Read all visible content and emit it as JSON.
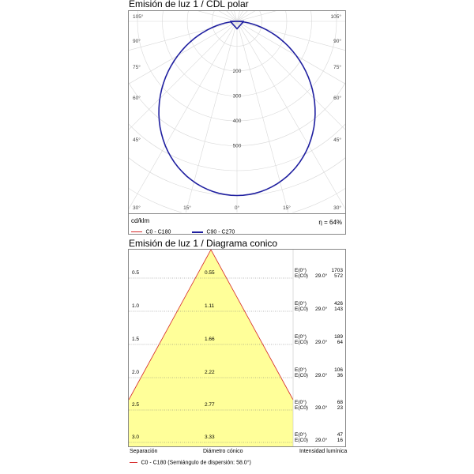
{
  "polar": {
    "title": "Emisión de luz 1 / CDL polar",
    "angles_left": [
      "105°",
      "90°",
      "75°",
      "60°",
      "45°",
      "30°",
      "15°"
    ],
    "angles_right": [
      "105°",
      "90°",
      "75°",
      "60°",
      "45°",
      "30°",
      "15°"
    ],
    "angle_bottom_center": "0°",
    "radial_labels": [
      "200",
      "300",
      "400",
      "500"
    ],
    "unit": "cd/klm",
    "efficiency": "η = 64%",
    "legend": [
      {
        "label": "C0 - C180",
        "color": "#d62828"
      },
      {
        "label": "C90 - C270",
        "color": "#1f1fa0"
      }
    ]
  },
  "cone": {
    "title": "Emisión de luz 1 / Diagrama conico",
    "fill_color": "#ffff99",
    "line_color": "#d62828",
    "rows": [
      {
        "separation": "0.5",
        "diameter": "0.55",
        "e0": "E(0°)",
        "ec0": "E(C0)",
        "angle": "29.0°",
        "v1": "1703",
        "v2": "572"
      },
      {
        "separation": "1.0",
        "diameter": "1.11",
        "e0": "E(0°)",
        "ec0": "E(C0)",
        "angle": "29.0°",
        "v1": "426",
        "v2": "143"
      },
      {
        "separation": "1.5",
        "diameter": "1.66",
        "e0": "E(0°)",
        "ec0": "E(C0)",
        "angle": "29.0°",
        "v1": "189",
        "v2": "64"
      },
      {
        "separation": "2.0",
        "diameter": "2.22",
        "e0": "E(0°)",
        "ec0": "E(C0)",
        "angle": "29.0°",
        "v1": "106",
        "v2": "36"
      },
      {
        "separation": "2.5",
        "diameter": "2.77",
        "e0": "E(0°)",
        "ec0": "E(C0)",
        "angle": "29.0°",
        "v1": "68",
        "v2": "23"
      },
      {
        "separation": "3.0",
        "diameter": "3.33",
        "e0": "E(0°)",
        "ec0": "E(C0)",
        "angle": "29.0°",
        "v1": "47",
        "v2": "16"
      }
    ],
    "footer": {
      "separation": "Separación",
      "diameter": "Diámetro cónico",
      "intensity": "Intensidad lumínica",
      "legend": "C0 - C180 (Semiángulo de dispersión: 58.0°)"
    }
  }
}
